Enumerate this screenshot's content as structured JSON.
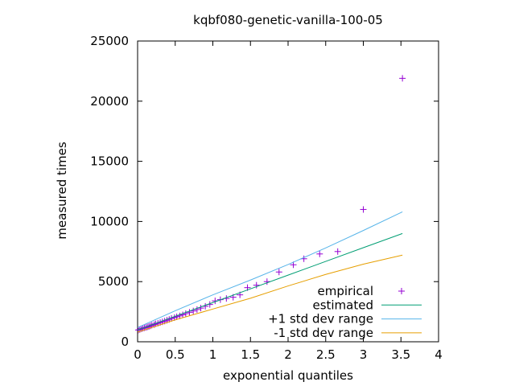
{
  "chart_data": {
    "type": "scatter",
    "title": "kqbf080-genetic-vanilla-100-05",
    "xlabel": "exponential quantiles",
    "ylabel": "measured times",
    "xlim": [
      0,
      4
    ],
    "ylim": [
      0,
      25000
    ],
    "xticks": [
      0,
      0.5,
      1,
      1.5,
      2,
      2.5,
      3,
      3.5,
      4
    ],
    "yticks": [
      0,
      5000,
      10000,
      15000,
      20000,
      25000
    ],
    "legend_position": "bottom-right",
    "grid": false,
    "series": [
      {
        "name": "empirical",
        "kind": "points",
        "marker": "+",
        "color": "#9400d3",
        "points": [
          [
            0.01,
            980
          ],
          [
            0.03,
            1020
          ],
          [
            0.05,
            1080
          ],
          [
            0.07,
            1120
          ],
          [
            0.09,
            1160
          ],
          [
            0.11,
            1190
          ],
          [
            0.13,
            1230
          ],
          [
            0.15,
            1270
          ],
          [
            0.17,
            1320
          ],
          [
            0.19,
            1380
          ],
          [
            0.22,
            1430
          ],
          [
            0.24,
            1490
          ],
          [
            0.27,
            1540
          ],
          [
            0.3,
            1600
          ],
          [
            0.33,
            1660
          ],
          [
            0.36,
            1720
          ],
          [
            0.39,
            1790
          ],
          [
            0.42,
            1860
          ],
          [
            0.45,
            1940
          ],
          [
            0.49,
            2010
          ],
          [
            0.52,
            2080
          ],
          [
            0.56,
            2150
          ],
          [
            0.6,
            2240
          ],
          [
            0.64,
            2340
          ],
          [
            0.69,
            2450
          ],
          [
            0.74,
            2560
          ],
          [
            0.79,
            2680
          ],
          [
            0.84,
            2800
          ],
          [
            0.9,
            2950
          ],
          [
            0.96,
            3100
          ],
          [
            1.03,
            3400
          ],
          [
            1.1,
            3500
          ],
          [
            1.18,
            3600
          ],
          [
            1.27,
            3700
          ],
          [
            1.36,
            3900
          ],
          [
            1.46,
            4500
          ],
          [
            1.58,
            4700
          ],
          [
            1.72,
            5000
          ],
          [
            1.88,
            5800
          ],
          [
            2.07,
            6400
          ],
          [
            2.21,
            6900
          ],
          [
            2.42,
            7300
          ],
          [
            2.66,
            7500
          ],
          [
            3.0,
            11000
          ],
          [
            3.52,
            21900
          ]
        ]
      },
      {
        "name": "estimated",
        "kind": "line",
        "color": "#009e73",
        "points": [
          [
            0,
            980
          ],
          [
            0.5,
            2120
          ],
          [
            1,
            3260
          ],
          [
            1.5,
            4400
          ],
          [
            2,
            5540
          ],
          [
            2.5,
            6680
          ],
          [
            3,
            7820
          ],
          [
            3.52,
            9000
          ]
        ]
      },
      {
        "name": "+1 std dev range",
        "kind": "line",
        "color": "#56b4e9",
        "points": [
          [
            0,
            1180
          ],
          [
            0.5,
            2580
          ],
          [
            1,
            3900
          ],
          [
            1.5,
            5130
          ],
          [
            2,
            6420
          ],
          [
            2.5,
            7800
          ],
          [
            3,
            9250
          ],
          [
            3.52,
            10800
          ]
        ]
      },
      {
        "name": "-1 std dev range",
        "kind": "line",
        "color": "#e69f00",
        "points": [
          [
            0,
            800
          ],
          [
            0.5,
            1820
          ],
          [
            1,
            2720
          ],
          [
            1.5,
            3620
          ],
          [
            2,
            4640
          ],
          [
            2.5,
            5600
          ],
          [
            3,
            6450
          ],
          [
            3.52,
            7200
          ]
        ]
      }
    ]
  }
}
